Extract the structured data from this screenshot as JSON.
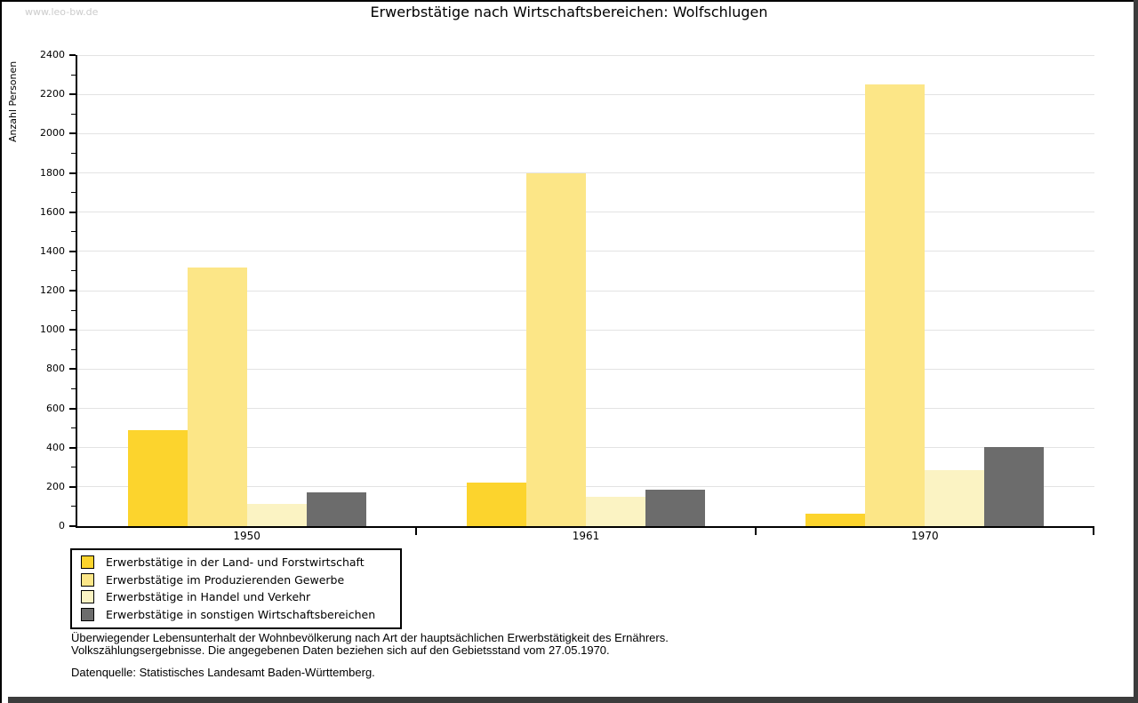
{
  "page": {
    "watermark": "www.leo-bw.de"
  },
  "chart_data": {
    "type": "bar",
    "title": "Erwerbstätige nach Wirtschaftsbereichen: Wolfschlugen",
    "ylabel": "Anzahl Personen",
    "xlabel": "",
    "categories": [
      "1950",
      "1961",
      "1970"
    ],
    "series": [
      {
        "name": "Erwerbstätige in der Land- und Forstwirtschaft",
        "color": "#fcd42d",
        "values": [
          490,
          220,
          65
        ]
      },
      {
        "name": "Erwerbstätige im Produzierenden Gewerbe",
        "color": "#fce687",
        "values": [
          1320,
          1800,
          2250
        ]
      },
      {
        "name": "Erwerbstätige in Handel und Verkehr",
        "color": "#fbf3c3",
        "values": [
          115,
          150,
          285
        ]
      },
      {
        "name": "Erwerbstätige in sonstigen Wirtschaftsbereichen",
        "color": "#6c6c6c",
        "values": [
          170,
          185,
          405
        ]
      }
    ],
    "ylim": [
      0,
      2400
    ],
    "ytick_step": 200,
    "minor_tick_step": 100,
    "grid": true,
    "legend_position": "bottom-left"
  },
  "footer": {
    "line1": "Überwiegender Lebensunterhalt der Wohnbevölkerung nach Art der hauptsächlichen Erwerbstätigkeit des Ernährers.",
    "line2": "Volkszählungsergebnisse. Die angegebenen Daten beziehen sich auf den Gebietsstand vom 27.05.1970.",
    "source": "Datenquelle: Statistisches Landesamt Baden-Württemberg."
  }
}
